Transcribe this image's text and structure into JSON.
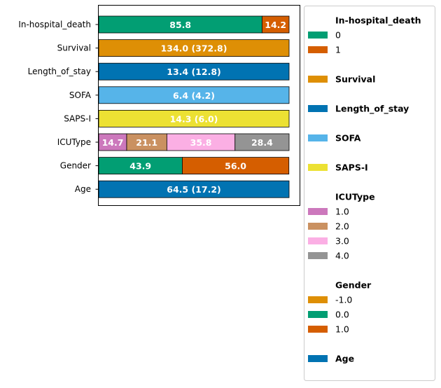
{
  "chart_data": {
    "type": "bar",
    "orientation": "horizontal",
    "stacked": true,
    "normalized_to_percent": true,
    "xlim": [
      0,
      100
    ],
    "categories": [
      "In-hospital_death",
      "Survival",
      "Length_of_stay",
      "SOFA",
      "SAPS-I",
      "ICUType",
      "Gender",
      "Age"
    ],
    "rows": [
      {
        "name": "In-hospital_death",
        "segments": [
          {
            "key": "0",
            "value": 85.8,
            "label": "85.8",
            "color": "#029e73"
          },
          {
            "key": "1",
            "value": 14.2,
            "label": "14.2",
            "color": "#d55e00"
          }
        ]
      },
      {
        "name": "Survival",
        "segments": [
          {
            "key": "Survival",
            "value": 100,
            "label": "134.0 (372.8)",
            "color": "#de8f05"
          }
        ]
      },
      {
        "name": "Length_of_stay",
        "segments": [
          {
            "key": "Length_of_stay",
            "value": 100,
            "label": "13.4 (12.8)",
            "color": "#0173b2"
          }
        ]
      },
      {
        "name": "SOFA",
        "segments": [
          {
            "key": "SOFA",
            "value": 100,
            "label": "6.4 (4.2)",
            "color": "#56b4e9"
          }
        ]
      },
      {
        "name": "SAPS-I",
        "segments": [
          {
            "key": "SAPS-I",
            "value": 100,
            "label": "14.3 (6.0)",
            "color": "#ece133"
          }
        ]
      },
      {
        "name": "ICUType",
        "segments": [
          {
            "key": "1.0",
            "value": 14.7,
            "label": "14.7",
            "color": "#cc78bc"
          },
          {
            "key": "2.0",
            "value": 21.1,
            "label": "21.1",
            "color": "#ca9161"
          },
          {
            "key": "3.0",
            "value": 35.8,
            "label": "35.8",
            "color": "#fbafe4"
          },
          {
            "key": "4.0",
            "value": 28.4,
            "label": "28.4",
            "color": "#949494"
          }
        ]
      },
      {
        "name": "Gender",
        "segments": [
          {
            "key": "0.0",
            "value": 43.9,
            "label": "43.9",
            "color": "#029e73"
          },
          {
            "key": "1.0",
            "value": 56.0,
            "label": "56.0",
            "color": "#d55e00"
          }
        ]
      },
      {
        "name": "Age",
        "segments": [
          {
            "key": "Age",
            "value": 100,
            "label": "64.5 (17.2)",
            "color": "#0173b2"
          }
        ]
      }
    ],
    "legend": {
      "placement": "right-outside",
      "groups": [
        {
          "title": "In-hospital_death",
          "entries": [
            {
              "label": "0",
              "color": "#029e73"
            },
            {
              "label": "1",
              "color": "#d55e00"
            }
          ]
        },
        {
          "title": "Survival",
          "color": "#de8f05",
          "entries": []
        },
        {
          "title": "Length_of_stay",
          "color": "#0173b2",
          "entries": []
        },
        {
          "title": "SOFA",
          "color": "#56b4e9",
          "entries": []
        },
        {
          "title": "SAPS-I",
          "color": "#ece133",
          "entries": []
        },
        {
          "title": "ICUType",
          "entries": [
            {
              "label": "1.0",
              "color": "#cc78bc"
            },
            {
              "label": "2.0",
              "color": "#ca9161"
            },
            {
              "label": "3.0",
              "color": "#fbafe4"
            },
            {
              "label": "4.0",
              "color": "#949494"
            }
          ]
        },
        {
          "title": "Gender",
          "entries": [
            {
              "label": "-1.0",
              "color": "#de8f05"
            },
            {
              "label": "0.0",
              "color": "#029e73"
            },
            {
              "label": "1.0",
              "color": "#d55e00"
            }
          ]
        },
        {
          "title": "Age",
          "color": "#0173b2",
          "entries": []
        }
      ]
    },
    "title": "",
    "xlabel": "",
    "ylabel": "",
    "grid": false
  }
}
